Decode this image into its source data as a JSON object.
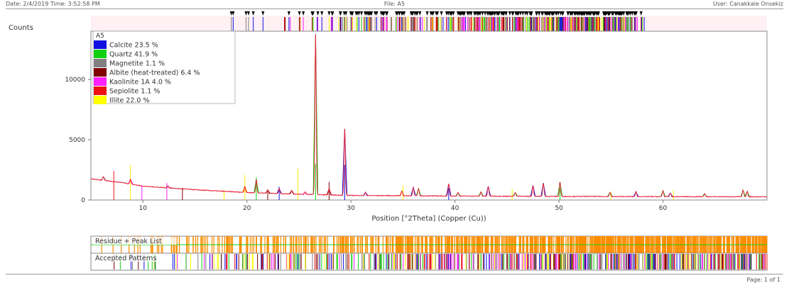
{
  "header": {
    "left": "Date: 2/4/2019 Time: 3:52:58 PM",
    "center": "File: A5",
    "right": "User: Canakkale Onsekiz"
  },
  "footer": {
    "page": "Page: 1 of 1"
  },
  "chart_data": {
    "type": "line",
    "sample": "A5",
    "ylabel": "Counts",
    "xlabel": "Position [°2Theta] (Copper (Cu))",
    "xlim": [
      5,
      70
    ],
    "ylim": [
      0,
      14000
    ],
    "x_ticks": [
      10,
      20,
      30,
      40,
      50,
      60
    ],
    "y_ticks": [
      0,
      5000,
      10000
    ],
    "legend_position": "top-left",
    "phases": [
      {
        "label": "Calcite 23.5 %",
        "color": "#1010e0"
      },
      {
        "label": "Quartz 41.9 %",
        "color": "#10d010"
      },
      {
        "label": "Magnetite 1.1 %",
        "color": "#808080"
      },
      {
        "label": "Albite (heat-treated) 6.4 %",
        "color": "#800000"
      },
      {
        "label": "Kaolinite 1A 4.0 %",
        "color": "#ff20ff"
      },
      {
        "label": "Sepiolite 1.1 %",
        "color": "#ee1010"
      },
      {
        "label": "Illite 22.0 %",
        "color": "#ffff00"
      }
    ],
    "trace_color": "#e8203a",
    "background": [
      [
        5,
        1750
      ],
      [
        8,
        1450
      ],
      [
        10,
        1150
      ],
      [
        15,
        850
      ],
      [
        20,
        620
      ],
      [
        25,
        480
      ],
      [
        30,
        380
      ],
      [
        40,
        330
      ],
      [
        50,
        300
      ],
      [
        60,
        280
      ],
      [
        70,
        270
      ]
    ],
    "peaks": [
      {
        "x": 6.2,
        "y": 300,
        "color": "#808080"
      },
      {
        "x": 8.8,
        "y": 380,
        "color": "#ff20ff"
      },
      {
        "x": 12.4,
        "y": 160,
        "color": "#ff20ff"
      },
      {
        "x": 19.8,
        "y": 500,
        "color": "#ffaa00"
      },
      {
        "x": 20.9,
        "y": 1100,
        "color": "#10d010"
      },
      {
        "x": 22.0,
        "y": 250,
        "color": "#800000"
      },
      {
        "x": 23.1,
        "y": 420,
        "color": "#1010e0"
      },
      {
        "x": 24.3,
        "y": 300,
        "color": "#800000"
      },
      {
        "x": 25.6,
        "y": 200,
        "color": "#ff20ff"
      },
      {
        "x": 26.6,
        "y": 13300,
        "color": "#10d010"
      },
      {
        "x": 27.9,
        "y": 500,
        "color": "#800000"
      },
      {
        "x": 29.4,
        "y": 5500,
        "color": "#1010e0"
      },
      {
        "x": 31.4,
        "y": 250,
        "color": "#1010e0"
      },
      {
        "x": 34.9,
        "y": 400,
        "color": "#ffaa00"
      },
      {
        "x": 36.0,
        "y": 700,
        "color": "#1010e0"
      },
      {
        "x": 36.5,
        "y": 600,
        "color": "#10d010"
      },
      {
        "x": 39.4,
        "y": 1000,
        "color": "#1010e0"
      },
      {
        "x": 40.3,
        "y": 300,
        "color": "#10d010"
      },
      {
        "x": 42.5,
        "y": 350,
        "color": "#10d010"
      },
      {
        "x": 43.2,
        "y": 800,
        "color": "#1010e0"
      },
      {
        "x": 45.8,
        "y": 300,
        "color": "#10d010"
      },
      {
        "x": 47.5,
        "y": 900,
        "color": "#1010e0"
      },
      {
        "x": 48.5,
        "y": 1100,
        "color": "#1010e0"
      },
      {
        "x": 50.1,
        "y": 1200,
        "color": "#10d010"
      },
      {
        "x": 54.9,
        "y": 350,
        "color": "#10d010"
      },
      {
        "x": 57.4,
        "y": 400,
        "color": "#1010e0"
      },
      {
        "x": 60.0,
        "y": 500,
        "color": "#10d010"
      },
      {
        "x": 60.7,
        "y": 300,
        "color": "#1010e0"
      },
      {
        "x": 64.0,
        "y": 250,
        "color": "#10d010"
      },
      {
        "x": 67.7,
        "y": 550,
        "color": "#10d010"
      },
      {
        "x": 68.1,
        "y": 450,
        "color": "#10d010"
      }
    ],
    "reference_sticks": [
      {
        "x": 7.2,
        "y": 2400,
        "color": "#ee1010"
      },
      {
        "x": 8.8,
        "y": 2900,
        "color": "#ffee00"
      },
      {
        "x": 9.9,
        "y": 1200,
        "color": "#ff20ff"
      },
      {
        "x": 12.3,
        "y": 1400,
        "color": "#ff20ff"
      },
      {
        "x": 13.8,
        "y": 1000,
        "color": "#800000"
      },
      {
        "x": 17.8,
        "y": 800,
        "color": "#ffee00"
      },
      {
        "x": 19.8,
        "y": 2100,
        "color": "#ffee00"
      },
      {
        "x": 20.9,
        "y": 1900,
        "color": "#10d010"
      },
      {
        "x": 22.0,
        "y": 900,
        "color": "#800000"
      },
      {
        "x": 23.1,
        "y": 1100,
        "color": "#1010e0"
      },
      {
        "x": 24.9,
        "y": 2600,
        "color": "#ffee00"
      },
      {
        "x": 26.6,
        "y": 3000,
        "color": "#10d010"
      },
      {
        "x": 27.9,
        "y": 1500,
        "color": "#800000"
      },
      {
        "x": 29.4,
        "y": 2900,
        "color": "#1010e0"
      },
      {
        "x": 35.0,
        "y": 1200,
        "color": "#ffee00"
      },
      {
        "x": 39.4,
        "y": 1000,
        "color": "#1010e0"
      },
      {
        "x": 45.5,
        "y": 900,
        "color": "#ffee00"
      },
      {
        "x": 50.1,
        "y": 1000,
        "color": "#10d010"
      },
      {
        "x": 55.0,
        "y": 700,
        "color": "#ffee00"
      },
      {
        "x": 61.0,
        "y": 800,
        "color": "#ffee00"
      }
    ],
    "strip_marker_color": "#000000",
    "residue_panel": {
      "label": "Residue + Peak List",
      "color": "#ff8c00"
    },
    "accepted_panel": {
      "label": "Accepted Patterns"
    },
    "residue_line_color": "#10d010"
  }
}
